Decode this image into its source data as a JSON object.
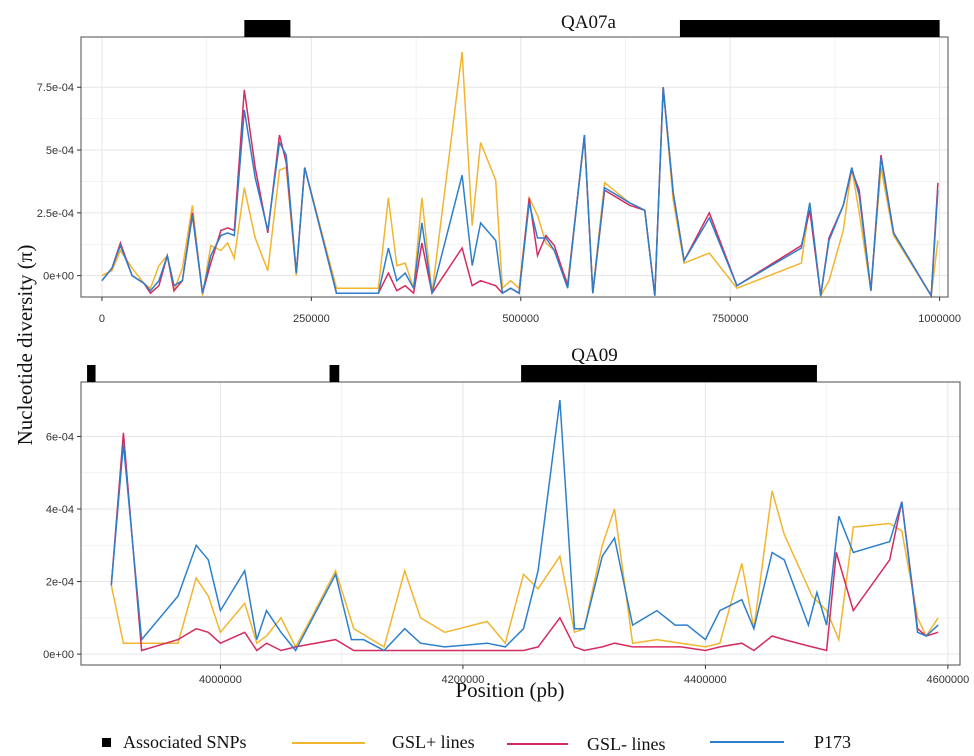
{
  "ylabel": "Nucleotide diversity (π)",
  "xlabel": "Position (pb)",
  "legend": {
    "snp_label": "Associated SNPs",
    "gslplus_label": "GSL+ lines",
    "gslminus_label": "GSL- lines",
    "p173_label": "P173"
  },
  "colors": {
    "gsl_plus": "#F2B530",
    "gsl_minus": "#D42C5E",
    "p173": "#2D7FCB",
    "snp": "#000000"
  },
  "chart_data": [
    {
      "type": "line",
      "title": "QA07a",
      "xlim": [
        -25000,
        1010000
      ],
      "ylim": [
        -8.5e-05,
        0.00095
      ],
      "xticks": [
        0,
        250000,
        500000,
        750000,
        1000000
      ],
      "xtick_labels": [
        "0",
        "250000",
        "500000",
        "750000",
        "1000000"
      ],
      "yticks": [
        0,
        0.00025,
        0.0005,
        0.00075
      ],
      "ytick_labels": [
        "0e+00",
        "2.5e-04",
        "5e-04",
        "7.5e-04"
      ],
      "snp_regions": [
        [
          170000,
          225000
        ],
        [
          690000,
          1000000
        ]
      ],
      "series": [
        {
          "name": "GSL+ lines",
          "color_key": "gsl_plus",
          "x": [
            0,
            12000,
            22000,
            36000,
            50000,
            58000,
            68000,
            78000,
            86000,
            96000,
            108000,
            120000,
            130000,
            142000,
            150000,
            158000,
            170000,
            183000,
            198000,
            212000,
            220000,
            232000,
            242000,
            280000,
            330000,
            342000,
            352000,
            362000,
            372000,
            382000,
            394000,
            430000,
            442000,
            452000,
            470000,
            478000,
            488000,
            498000,
            510000,
            520000,
            530000,
            540000,
            556000,
            576000,
            586000,
            600000,
            630000,
            648000,
            660000,
            670000,
            682000,
            695000,
            725000,
            758000,
            835000,
            845000,
            858000,
            868000,
            885000,
            895000,
            904000,
            918000,
            930000,
            945000,
            990000,
            998000
          ],
          "y": [
            0,
            2e-05,
            0.0001,
            3e-05,
            -3e-05,
            -5e-05,
            4e-05,
            8e-05,
            -6e-05,
            3e-05,
            0.00028,
            -8e-05,
            0.00012,
            0.0001,
            0.00013,
            7e-05,
            0.00035,
            0.00015,
            2e-05,
            0.00042,
            0.00043,
            0.0,
            0.00043,
            -5e-05,
            -5e-05,
            0.00031,
            4e-05,
            5e-05,
            -5e-05,
            0.00031,
            -7e-05,
            0.00089,
            0.0002,
            0.00053,
            0.00038,
            -5e-05,
            -2e-05,
            -5e-05,
            0.00031,
            0.00024,
            0.00013,
            0.0001,
            -3e-05,
            0.00055,
            -6e-05,
            0.00037,
            0.00029,
            0.00026,
            -8e-05,
            0.00075,
            0.0003,
            5e-05,
            9e-05,
            -5e-05,
            5e-05,
            0.00029,
            -8e-05,
            -2e-05,
            0.00018,
            0.00043,
            0.00025,
            -6e-05,
            0.00043,
            0.00016,
            -8e-05,
            0.00014
          ]
        },
        {
          "name": "GSL- lines",
          "color_key": "gsl_minus",
          "x": [
            0,
            12000,
            22000,
            36000,
            50000,
            58000,
            68000,
            78000,
            86000,
            96000,
            108000,
            120000,
            130000,
            142000,
            150000,
            158000,
            170000,
            183000,
            198000,
            212000,
            220000,
            232000,
            242000,
            280000,
            330000,
            342000,
            352000,
            362000,
            372000,
            382000,
            394000,
            430000,
            442000,
            452000,
            470000,
            478000,
            488000,
            498000,
            510000,
            520000,
            530000,
            540000,
            556000,
            576000,
            586000,
            600000,
            630000,
            648000,
            660000,
            670000,
            682000,
            695000,
            725000,
            758000,
            835000,
            845000,
            858000,
            868000,
            885000,
            895000,
            904000,
            918000,
            930000,
            945000,
            990000,
            998000
          ],
          "y": [
            -2e-05,
            3e-05,
            0.00013,
            0.0,
            -3e-05,
            -7e-05,
            -4e-05,
            8e-05,
            -6e-05,
            -2e-05,
            0.00025,
            -7e-05,
            5e-05,
            0.00018,
            0.00019,
            0.00018,
            0.00074,
            0.00043,
            0.00017,
            0.00056,
            0.00045,
            1e-05,
            0.00043,
            -7e-05,
            -7e-05,
            1e-05,
            -6e-05,
            -4e-05,
            -7e-05,
            0.00013,
            -7e-05,
            0.00011,
            -4e-05,
            -2e-05,
            -4e-05,
            -7e-05,
            -5e-05,
            -7e-05,
            0.00031,
            8e-05,
            0.00016,
            0.00012,
            -4e-05,
            0.00056,
            -7e-05,
            0.00034,
            0.00028,
            0.00026,
            -8e-05,
            0.00075,
            0.00033,
            6e-05,
            0.00025,
            -4e-05,
            0.00012,
            0.00026,
            -8e-05,
            0.00015,
            0.00028,
            0.00042,
            0.00034,
            -6e-05,
            0.00048,
            0.00017,
            -8e-05,
            0.00037
          ]
        },
        {
          "name": "P173",
          "color_key": "p173",
          "x": [
            0,
            12000,
            22000,
            36000,
            50000,
            58000,
            68000,
            78000,
            86000,
            96000,
            108000,
            120000,
            130000,
            142000,
            150000,
            158000,
            170000,
            183000,
            198000,
            212000,
            220000,
            232000,
            242000,
            280000,
            330000,
            342000,
            352000,
            362000,
            372000,
            382000,
            394000,
            430000,
            442000,
            452000,
            470000,
            478000,
            488000,
            498000,
            510000,
            520000,
            530000,
            540000,
            556000,
            576000,
            586000,
            600000,
            630000,
            648000,
            660000,
            670000,
            682000,
            695000,
            725000,
            758000,
            835000,
            845000,
            858000,
            868000,
            885000,
            895000,
            904000,
            918000,
            930000,
            945000,
            990000,
            998000
          ],
          "y": [
            -2e-05,
            3e-05,
            0.00012,
            0.0,
            -3e-05,
            -6e-05,
            -2e-05,
            8e-05,
            -4e-05,
            -2e-05,
            0.00024,
            -7e-05,
            8e-05,
            0.00016,
            0.00017,
            0.00016,
            0.00066,
            0.00039,
            0.00018,
            0.00053,
            0.00048,
            1e-05,
            0.00043,
            -7e-05,
            -7e-05,
            0.00011,
            -2e-05,
            1e-05,
            -5e-05,
            0.00021,
            -7e-05,
            0.0004,
            4e-05,
            0.00021,
            0.00014,
            -7e-05,
            -5e-05,
            -7e-05,
            0.00029,
            0.00015,
            0.00015,
            0.0001,
            -5e-05,
            0.00056,
            -7e-05,
            0.00035,
            0.00029,
            0.00026,
            -8e-05,
            0.00075,
            0.00033,
            6e-05,
            0.00023,
            -4e-05,
            0.00011,
            0.00029,
            -8e-05,
            0.00014,
            0.00028,
            0.00043,
            0.00032,
            -6e-05,
            0.00047,
            0.00017,
            -8e-05,
            0.00034
          ]
        }
      ]
    },
    {
      "type": "line",
      "title": "QA09",
      "xlim": [
        3885000,
        4610000
      ],
      "ylim": [
        -3e-05,
        0.00075
      ],
      "xticks": [
        4000000,
        4200000,
        4400000,
        4600000
      ],
      "xtick_labels": [
        "4000000",
        "4200000",
        "4400000",
        "4600000"
      ],
      "yticks": [
        0,
        0.0002,
        0.0004,
        0.0006
      ],
      "ytick_labels": [
        "0e+00",
        "2e-04",
        "4e-04",
        "6e-04"
      ],
      "snp_regions": [
        [
          3890000,
          3897000
        ],
        [
          4090000,
          4098000
        ],
        [
          4248000,
          4492000
        ]
      ],
      "series": [
        {
          "name": "GSL+ lines",
          "color_key": "gsl_plus",
          "x": [
            3910000,
            3920000,
            3935000,
            3965000,
            3980000,
            3990000,
            4000000,
            4020000,
            4030000,
            4038000,
            4050000,
            4062000,
            4075000,
            4095000,
            4110000,
            4120000,
            4135000,
            4152000,
            4165000,
            4185000,
            4220000,
            4235000,
            4250000,
            4262000,
            4280000,
            4292000,
            4300000,
            4315000,
            4325000,
            4340000,
            4360000,
            4380000,
            4400000,
            4412000,
            4430000,
            4440000,
            4455000,
            4465000,
            4488000,
            4500000,
            4510000,
            4522000,
            4552000,
            4562000,
            4575000,
            4582000,
            4592000
          ],
          "y": [
            0.00019,
            3e-05,
            3e-05,
            3e-05,
            0.00021,
            0.00016,
            6e-05,
            0.00014,
            3e-05,
            5e-05,
            0.0001,
            2e-05,
            0.0001,
            0.00023,
            7e-05,
            5e-05,
            2e-05,
            0.00023,
            0.0001,
            6e-05,
            9e-05,
            3e-05,
            0.00022,
            0.00018,
            0.00027,
            6e-05,
            7e-05,
            0.0003,
            0.0004,
            3e-05,
            4e-05,
            3e-05,
            2e-05,
            3e-05,
            0.00025,
            7e-05,
            0.00045,
            0.00033,
            0.00016,
            0.00012,
            4e-05,
            0.00035,
            0.00036,
            0.00034,
            0.0001,
            5e-05,
            0.0001
          ]
        },
        {
          "name": "GSL- lines",
          "color_key": "gsl_minus",
          "x": [
            3910000,
            3920000,
            3935000,
            3965000,
            3980000,
            3990000,
            4000000,
            4020000,
            4030000,
            4038000,
            4050000,
            4062000,
            4095000,
            4110000,
            4120000,
            4135000,
            4152000,
            4165000,
            4185000,
            4220000,
            4235000,
            4250000,
            4262000,
            4280000,
            4292000,
            4300000,
            4315000,
            4325000,
            4340000,
            4360000,
            4380000,
            4400000,
            4412000,
            4430000,
            4440000,
            4455000,
            4465000,
            4488000,
            4500000,
            4508000,
            4522000,
            4552000,
            4562000,
            4575000,
            4582000,
            4592000
          ],
          "y": [
            0.00019,
            0.00061,
            1e-05,
            4e-05,
            7e-05,
            6e-05,
            3e-05,
            6e-05,
            1e-05,
            3e-05,
            1e-05,
            2e-05,
            4e-05,
            1e-05,
            1e-05,
            1e-05,
            1e-05,
            1e-05,
            1e-05,
            1e-05,
            1e-05,
            1e-05,
            2e-05,
            0.0001,
            2e-05,
            1e-05,
            2e-05,
            3e-05,
            2e-05,
            2e-05,
            2e-05,
            1e-05,
            2e-05,
            3e-05,
            1e-05,
            5e-05,
            4e-05,
            2e-05,
            1e-05,
            0.00028,
            0.00012,
            0.00026,
            0.00042,
            7e-05,
            5e-05,
            6e-05
          ]
        },
        {
          "name": "P173",
          "color_key": "p173",
          "x": [
            3910000,
            3920000,
            3935000,
            3965000,
            3980000,
            3990000,
            4000000,
            4020000,
            4030000,
            4038000,
            4050000,
            4062000,
            4095000,
            4108000,
            4118000,
            4135000,
            4152000,
            4165000,
            4185000,
            4220000,
            4235000,
            4250000,
            4262000,
            4280000,
            4292000,
            4300000,
            4315000,
            4325000,
            4340000,
            4360000,
            4375000,
            4385000,
            4400000,
            4412000,
            4430000,
            4440000,
            4455000,
            4465000,
            4485000,
            4492000,
            4500000,
            4510000,
            4522000,
            4552000,
            4562000,
            4575000,
            4582000,
            4592000
          ],
          "y": [
            0.00019,
            0.00058,
            4e-05,
            0.00016,
            0.0003,
            0.00026,
            0.00012,
            0.00023,
            4e-05,
            0.00012,
            6e-05,
            1e-05,
            0.00022,
            4e-05,
            4e-05,
            1e-05,
            7e-05,
            3e-05,
            2e-05,
            3e-05,
            2e-05,
            7e-05,
            0.00023,
            0.0007,
            7e-05,
            7e-05,
            0.00027,
            0.00032,
            8e-05,
            0.00012,
            8e-05,
            8e-05,
            4e-05,
            0.00012,
            0.00015,
            7e-05,
            0.00028,
            0.00026,
            8e-05,
            0.00017,
            8e-05,
            0.00038,
            0.00028,
            0.00031,
            0.00042,
            6e-05,
            5e-05,
            8e-05
          ]
        }
      ]
    }
  ]
}
